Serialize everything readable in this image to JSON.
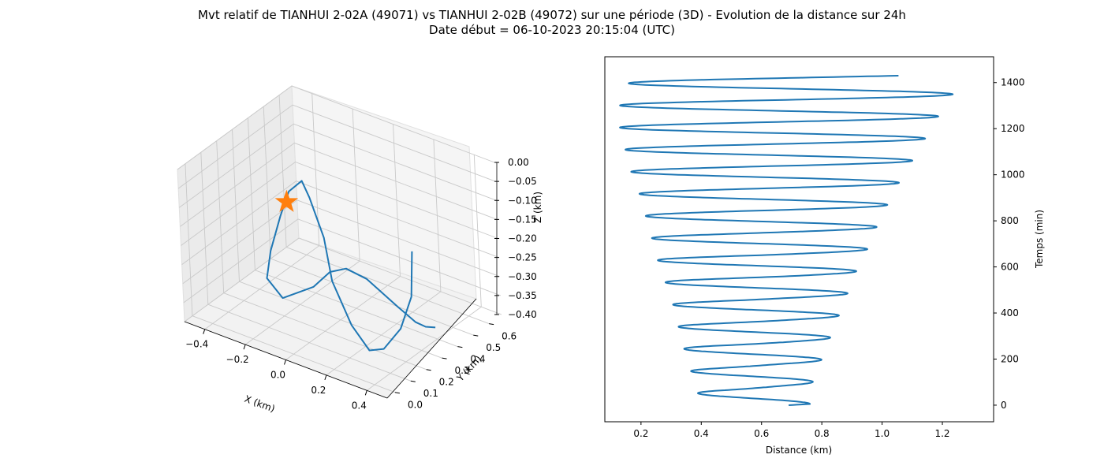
{
  "title": "Mvt relatif de TIANHUI 2-02A (49071) vs TIANHUI 2-02B (49072) sur une période (3D) - Evolution de la distance sur 24h",
  "subtitle": "Date début = 06-10-2023 20:15:04 (UTC)",
  "colors": {
    "series": "#1f77b4",
    "marker": "#ff7f0e"
  },
  "chart_data": [
    {
      "type": "line",
      "projection": "3d",
      "xlabel": "X (km)",
      "ylabel": "Y (km)",
      "zlabel": "Z (km)",
      "xlim": [
        -0.5,
        0.5
      ],
      "ylim": [
        -0.05,
        0.68
      ],
      "zlim": [
        -0.4,
        0.0
      ],
      "x_ticks": [
        "−0.4",
        "−0.2",
        "0.0",
        "0.2",
        "0.4"
      ],
      "y_ticks": [
        "0.0",
        "0.1",
        "0.2",
        "0.3",
        "0.4",
        "0.5",
        "0.6"
      ],
      "z_ticks": [
        "0.00",
        "−0.05",
        "−0.10",
        "−0.15",
        "−0.20",
        "−0.25",
        "−0.30",
        "−0.35",
        "−0.40"
      ],
      "grid": true,
      "marker": {
        "shape": "star",
        "x": 0.0,
        "y": 0.0,
        "z": 0.0
      },
      "series": [
        {
          "points": [
            [
              0.26,
              0.44,
              -0.21
            ],
            [
              0.32,
              0.35,
              -0.29
            ],
            [
              0.34,
              0.25,
              -0.34
            ],
            [
              0.34,
              0.14,
              -0.36
            ],
            [
              0.3,
              0.1,
              -0.36
            ],
            [
              0.2,
              0.12,
              -0.32
            ],
            [
              0.08,
              0.16,
              -0.24
            ],
            [
              0.0,
              0.22,
              -0.16
            ],
            [
              -0.12,
              0.29,
              -0.1
            ],
            [
              -0.22,
              0.37,
              -0.1
            ],
            [
              -0.32,
              0.41,
              -0.16
            ],
            [
              -0.36,
              0.4,
              -0.23
            ],
            [
              -0.36,
              0.33,
              -0.3
            ],
            [
              -0.32,
              0.25,
              -0.34
            ],
            [
              -0.18,
              0.17,
              -0.34
            ],
            [
              0.01,
              0.13,
              -0.26
            ],
            [
              0.12,
              0.1,
              -0.19
            ],
            [
              0.21,
              0.09,
              -0.16
            ],
            [
              0.27,
              0.14,
              -0.19
            ],
            [
              0.34,
              0.24,
              -0.28
            ],
            [
              0.36,
              0.32,
              -0.34
            ],
            [
              0.36,
              0.38,
              -0.37
            ],
            [
              0.36,
              0.44,
              -0.39
            ]
          ]
        }
      ]
    },
    {
      "type": "line",
      "xlabel": "Distance (km)",
      "ylabel": "Temps (min)",
      "xlim": [
        0.08,
        1.37
      ],
      "ylim": [
        -72,
        1512
      ],
      "x_ticks": [
        "0.2",
        "0.4",
        "0.6",
        "0.8",
        "1.0",
        "1.2"
      ],
      "y_ticks": [
        "0",
        "200",
        "400",
        "600",
        "800",
        "1000",
        "1200",
        "1400"
      ],
      "y_axis_side": "right",
      "grid": false,
      "oscillation": {
        "period_min": 96,
        "t_end": 1430
      },
      "max_envelope": [
        [
          0,
          0.76
        ],
        [
          100,
          0.77
        ],
        [
          200,
          0.8
        ],
        [
          300,
          0.83
        ],
        [
          400,
          0.86
        ],
        [
          500,
          0.89
        ],
        [
          600,
          0.92
        ],
        [
          700,
          0.96
        ],
        [
          800,
          0.99
        ],
        [
          900,
          1.03
        ],
        [
          1000,
          1.07
        ],
        [
          1100,
          1.12
        ],
        [
          1200,
          1.16
        ],
        [
          1300,
          1.21
        ],
        [
          1400,
          1.26
        ],
        [
          1430,
          1.31
        ]
      ],
      "min_envelope": [
        [
          0,
          0.4
        ],
        [
          100,
          0.37
        ],
        [
          200,
          0.35
        ],
        [
          300,
          0.33
        ],
        [
          400,
          0.31
        ],
        [
          500,
          0.29
        ],
        [
          600,
          0.26
        ],
        [
          700,
          0.24
        ],
        [
          800,
          0.22
        ],
        [
          900,
          0.2
        ],
        [
          1000,
          0.17
        ],
        [
          1100,
          0.15
        ],
        [
          1200,
          0.13
        ],
        [
          1300,
          0.13
        ],
        [
          1400,
          0.16
        ]
      ],
      "mid_bumps": [
        [
          70,
          0.6
        ],
        [
          165,
          0.58
        ],
        [
          265,
          0.55
        ],
        [
          360,
          0.54
        ],
        [
          455,
          0.53
        ],
        [
          555,
          0.52
        ],
        [
          650,
          0.51
        ],
        [
          745,
          0.5
        ]
      ]
    }
  ]
}
